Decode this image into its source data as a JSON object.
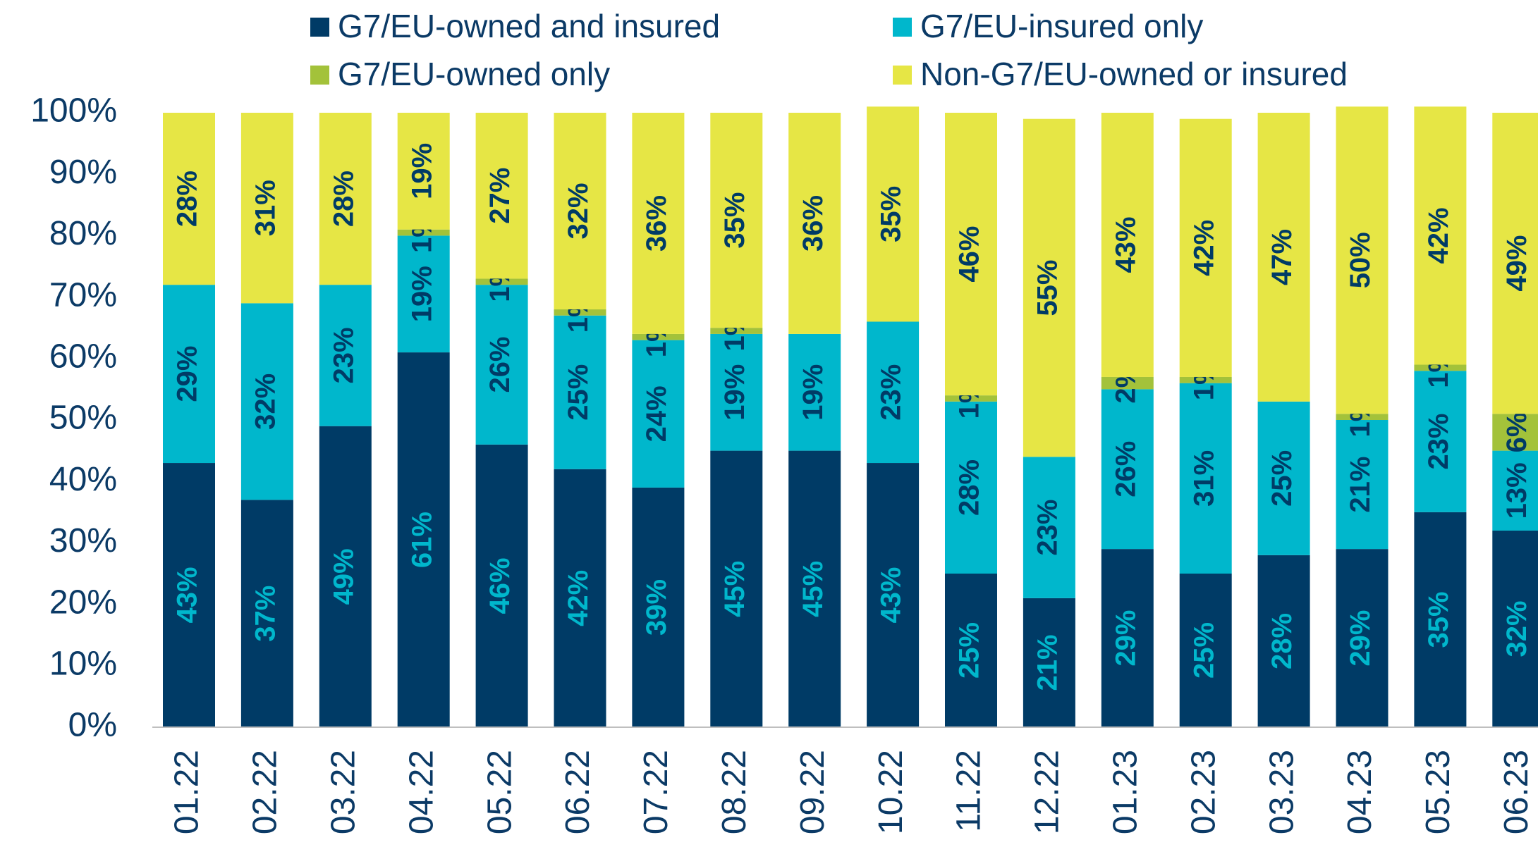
{
  "chart_data": {
    "type": "stacked_bar",
    "categories": [
      "01.22",
      "02.22",
      "03.22",
      "04.22",
      "05.22",
      "06.22",
      "07.22",
      "08.22",
      "09.22",
      "10.22",
      "11.22",
      "12.22",
      "01.23",
      "02.23",
      "03.23",
      "04.23",
      "05.23",
      "06.23"
    ],
    "series": [
      {
        "name": "G7/EU-owned and insured",
        "color": "#003B66",
        "label_color": "#00B7CC",
        "values": [
          43,
          37,
          49,
          61,
          46,
          42,
          39,
          45,
          45,
          43,
          25,
          21,
          29,
          25,
          28,
          29,
          35,
          32
        ],
        "value_labels": [
          "43%",
          "37%",
          "49%",
          "61%",
          "46%",
          "42%",
          "39%",
          "45%",
          "45%",
          "43%",
          "25%",
          "21%",
          "29%",
          "25%",
          "28%",
          "29%",
          "35%",
          "32%"
        ]
      },
      {
        "name": "G7/EU-insured only",
        "color": "#00B7CC",
        "label_color": "#003B66",
        "values": [
          29,
          32,
          23,
          19,
          26,
          25,
          24,
          19,
          19,
          23,
          28,
          23,
          26,
          31,
          25,
          21,
          23,
          13
        ],
        "value_labels": [
          "29%",
          "32%",
          "23%",
          "19%",
          "26%",
          "25%",
          "24%",
          "19%",
          "19%",
          "23%",
          "28%",
          "23%",
          "26%",
          "31%",
          "25%",
          "21%",
          "23%",
          "13%"
        ]
      },
      {
        "name": "G7/EU-owned only",
        "color": "#A3C23A",
        "label_color": "#003B66",
        "values": [
          null,
          null,
          null,
          1,
          1,
          1,
          1,
          1,
          null,
          null,
          1,
          null,
          2,
          1,
          null,
          1,
          1,
          6
        ],
        "value_labels": [
          null,
          null,
          null,
          "1%",
          "1%",
          "1%",
          "1%",
          "1%",
          null,
          null,
          "1%",
          null,
          "2%",
          "1%",
          null,
          "1%",
          "1%",
          "6%"
        ]
      },
      {
        "name": "Non-G7/EU-owned or insured",
        "color": "#E6E645",
        "label_color": "#003B66",
        "values": [
          28,
          31,
          28,
          19,
          27,
          32,
          36,
          35,
          36,
          35,
          46,
          55,
          43,
          42,
          47,
          50,
          42,
          49
        ],
        "value_labels": [
          "28%",
          "31%",
          "28%",
          "19%",
          "27%",
          "32%",
          "36%",
          "35%",
          "36%",
          "35%",
          "46%",
          "55%",
          "43%",
          "42%",
          "47%",
          "50%",
          "42%",
          "49%"
        ]
      }
    ],
    "ylim": [
      0,
      100
    ],
    "yticks": [
      {
        "value": 0,
        "label": "0%"
      },
      {
        "value": 10,
        "label": "10%"
      },
      {
        "value": 20,
        "label": "20%"
      },
      {
        "value": 30,
        "label": "30%"
      },
      {
        "value": 40,
        "label": "40%"
      },
      {
        "value": 50,
        "label": "50%"
      },
      {
        "value": 60,
        "label": "60%"
      },
      {
        "value": 70,
        "label": "70%"
      },
      {
        "value": 80,
        "label": "80%"
      },
      {
        "value": 90,
        "label": "90%"
      },
      {
        "value": 100,
        "label": "100%"
      }
    ],
    "grid": false,
    "legend": "top"
  }
}
